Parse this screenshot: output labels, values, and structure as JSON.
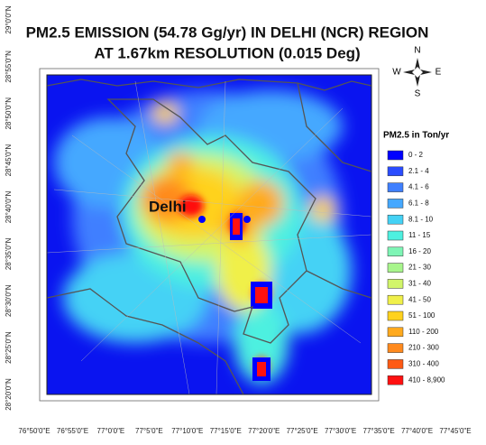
{
  "header": {
    "title_line_1": "PM2.5 EMISSION (54.78 Gg/yr)  IN  DELHI (NCR) REGION",
    "title_line_2": "AT 1.67km RESOLUTION (0.015 Deg)"
  },
  "compass": {
    "north": "N",
    "south": "S",
    "east": "E",
    "west": "W"
  },
  "map": {
    "place_label": "Delhi"
  },
  "axes": {
    "latitude_ticks": [
      "29°0'0\"N",
      "28°55'0\"N",
      "28°50'0\"N",
      "28°45'0\"N",
      "28°40'0\"N",
      "28°35'0\"N",
      "28°30'0\"N",
      "28°25'0\"N",
      "28°20'0\"N"
    ],
    "longitude_ticks": [
      "76°50'0\"E",
      "76°55'0\"E",
      "77°0'0\"E",
      "77°5'0\"E",
      "77°10'0\"E",
      "77°15'0\"E",
      "77°20'0\"E",
      "77°25'0\"E",
      "77°30'0\"E",
      "77°35'0\"E",
      "77°40'0\"E",
      "77°45'0\"E"
    ]
  },
  "legend": {
    "title": "PM2.5 in Ton/yr",
    "items": [
      {
        "label": "0 - 2",
        "color": "#0000ff"
      },
      {
        "label": "2.1 - 4",
        "color": "#2a4cff"
      },
      {
        "label": "4.1 - 6",
        "color": "#3f7fff"
      },
      {
        "label": "6.1 - 8",
        "color": "#45a8ff"
      },
      {
        "label": "8.1 - 10",
        "color": "#44d2f5"
      },
      {
        "label": "11 - 15",
        "color": "#4ef0e0"
      },
      {
        "label": "16 - 20",
        "color": "#7ef5b5"
      },
      {
        "label": "21 - 30",
        "color": "#a8f58c"
      },
      {
        "label": "31 - 40",
        "color": "#d2f56a"
      },
      {
        "label": "41 - 50",
        "color": "#f0f04a"
      },
      {
        "label": "51 - 100",
        "color": "#ffd21e"
      },
      {
        "label": "110 - 200",
        "color": "#ffaa1e"
      },
      {
        "label": "210 - 300",
        "color": "#ff8a1e"
      },
      {
        "label": "310 - 400",
        "color": "#ff5a14"
      },
      {
        "label": "410 - 8,900",
        "color": "#ff1010"
      }
    ]
  }
}
